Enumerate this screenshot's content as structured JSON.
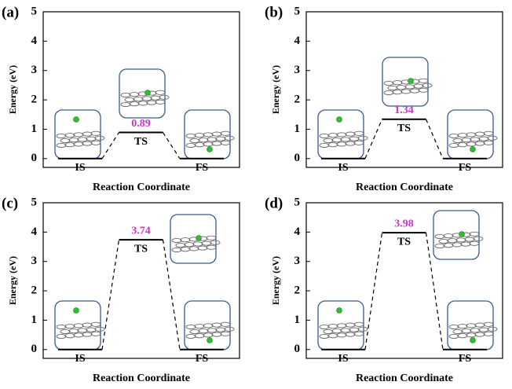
{
  "chart_data": [
    {
      "type": "energy-profile",
      "panel_label": "(a)",
      "ylabel": "Energy (eV)",
      "xlabel": "Reaction Coordinate",
      "categories": [
        "IS",
        "TS",
        "FS"
      ],
      "values": [
        0,
        0.89,
        0
      ],
      "value_labels": [
        null,
        "0.89",
        null
      ],
      "label_color": "#cc33cc",
      "ylim": [
        -0.3,
        5
      ],
      "yticks": [
        0,
        1,
        2,
        3,
        4,
        5
      ]
    },
    {
      "type": "energy-profile",
      "panel_label": "(b)",
      "ylabel": "Energy (eV)",
      "xlabel": "Reaction Coordinate",
      "categories": [
        "IS",
        "TS",
        "FS"
      ],
      "values": [
        0,
        1.34,
        0
      ],
      "value_labels": [
        null,
        "1.34",
        null
      ],
      "label_color": "#cc33cc",
      "ylim": [
        -0.3,
        5
      ],
      "yticks": [
        0,
        1,
        2,
        3,
        4,
        5
      ]
    },
    {
      "type": "energy-profile",
      "panel_label": "(c)",
      "ylabel": "Energy (eV)",
      "xlabel": "Reaction Coordinate",
      "categories": [
        "IS",
        "TS",
        "FS"
      ],
      "values": [
        0,
        3.74,
        0
      ],
      "value_labels": [
        null,
        "3.74",
        null
      ],
      "label_color": "#cc33cc",
      "ylim": [
        -0.3,
        5
      ],
      "yticks": [
        0,
        1,
        2,
        3,
        4,
        5
      ]
    },
    {
      "type": "energy-profile",
      "panel_label": "(d)",
      "ylabel": "Energy (eV)",
      "xlabel": "Reaction Coordinate",
      "categories": [
        "IS",
        "TS",
        "FS"
      ],
      "values": [
        0,
        3.98,
        0
      ],
      "value_labels": [
        null,
        "3.98",
        null
      ],
      "label_color": "#cc33cc",
      "ylim": [
        -0.3,
        5
      ],
      "yticks": [
        0,
        1,
        2,
        3,
        4,
        5
      ]
    }
  ]
}
